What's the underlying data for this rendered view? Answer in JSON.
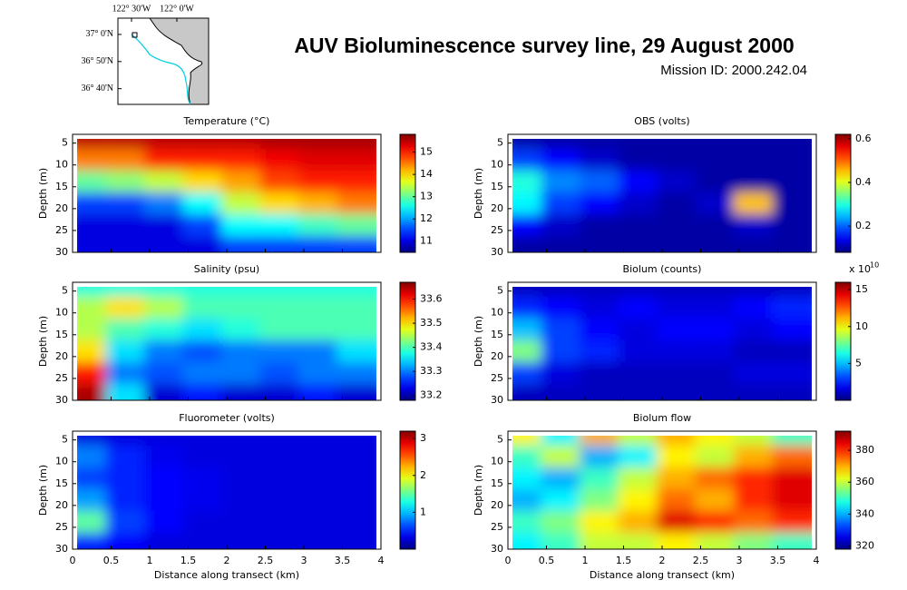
{
  "header": {
    "title": "AUV Bioluminescence survey line, 29 August 2000",
    "subtitle": "Mission ID: 2000.242.04"
  },
  "chart_data": [
    {
      "type": "map",
      "xlim": [
        -122.65,
        -121.65
      ],
      "ylim": [
        36.57,
        37.1
      ],
      "xticks": [
        {
          "value": -122.5,
          "label": "122° 30'W"
        },
        {
          "value": -122,
          "label": "122° 0'W"
        }
      ],
      "yticks": [
        {
          "value": 37,
          "label": "37° 0'N"
        },
        {
          "value": 36.8333,
          "label": "36° 50'N"
        },
        {
          "value": 36.6667,
          "label": "36° 40'N"
        }
      ]
    },
    {
      "type": "heatmap",
      "title": "Temperature (°C)",
      "ylabel": "Depth (m)",
      "xlim": [
        0,
        4
      ],
      "ylim": [
        3,
        30
      ],
      "reverse_y": true,
      "xticks": [
        0,
        0.5,
        1,
        1.5,
        2,
        2.5,
        3,
        3.5,
        4
      ],
      "show_xticklabels": false,
      "yticks": [
        5,
        10,
        15,
        20,
        25,
        30
      ],
      "x": [
        0.25,
        0.75,
        1.25,
        1.75,
        2.25,
        2.75,
        3.25,
        3.75
      ],
      "y": [
        5,
        10,
        15,
        20,
        25,
        30
      ],
      "values": [
        [
          15.5,
          15.5,
          15.5,
          15.5,
          15.5,
          15.6,
          15.6,
          15.6
        ],
        [
          14.5,
          14.5,
          15,
          15,
          15,
          15.2,
          15.3,
          15.3
        ],
        [
          13,
          13.2,
          13.5,
          14,
          14.3,
          14.8,
          15,
          15
        ],
        [
          11.5,
          11.5,
          11.8,
          12.5,
          13.5,
          14,
          14.2,
          14.5
        ],
        [
          11,
          11,
          11,
          11.5,
          12.5,
          12.5,
          12.8,
          13
        ],
        [
          11,
          11,
          11,
          11,
          11.5,
          11.5,
          11.5,
          11.5
        ]
      ],
      "clim": [
        10.5,
        15.8
      ],
      "cticks": [
        11,
        12,
        13,
        14,
        15
      ]
    },
    {
      "type": "heatmap",
      "title": "OBS (volts)",
      "ylabel": "Depth (m)",
      "xlim": [
        0,
        4
      ],
      "ylim": [
        3,
        30
      ],
      "reverse_y": true,
      "xticks": [
        0,
        0.5,
        1,
        1.5,
        2,
        2.5,
        3,
        3.5,
        4
      ],
      "show_xticklabels": false,
      "yticks": [
        5,
        10,
        15,
        20,
        25,
        30
      ],
      "x": [
        0.25,
        0.75,
        1.25,
        1.75,
        2.25,
        2.75,
        3.25,
        3.75
      ],
      "y": [
        5,
        10,
        15,
        20,
        25,
        30
      ],
      "values": [
        [
          0.1,
          0.1,
          0.1,
          0.1,
          0.1,
          0.1,
          0.1,
          0.1
        ],
        [
          0.18,
          0.15,
          0.12,
          0.1,
          0.1,
          0.1,
          0.1,
          0.1
        ],
        [
          0.3,
          0.22,
          0.2,
          0.15,
          0.12,
          0.1,
          0.1,
          0.1
        ],
        [
          0.28,
          0.18,
          0.15,
          0.12,
          0.1,
          0.12,
          0.45,
          0.1
        ],
        [
          0.15,
          0.12,
          0.1,
          0.1,
          0.1,
          0.1,
          0.12,
          0.1
        ],
        [
          0.1,
          0.1,
          0.1,
          0.1,
          0.1,
          0.1,
          0.1,
          0.1
        ]
      ],
      "clim": [
        0.08,
        0.62
      ],
      "cticks": [
        0.2,
        0.4,
        0.6
      ]
    },
    {
      "type": "heatmap",
      "title": "Salinity (psu)",
      "ylabel": "Depth (m)",
      "xlim": [
        0,
        4
      ],
      "ylim": [
        3,
        30
      ],
      "reverse_y": true,
      "xticks": [
        0,
        0.5,
        1,
        1.5,
        2,
        2.5,
        3,
        3.5,
        4
      ],
      "show_xticklabels": false,
      "yticks": [
        5,
        10,
        15,
        20,
        25,
        30
      ],
      "x": [
        0.25,
        0.75,
        1.25,
        1.75,
        2.25,
        2.75,
        3.25,
        3.75
      ],
      "y": [
        5,
        10,
        15,
        20,
        25,
        30
      ],
      "values": [
        [
          33.38,
          33.38,
          33.38,
          33.38,
          33.38,
          33.38,
          33.38,
          33.38
        ],
        [
          33.45,
          33.5,
          33.45,
          33.4,
          33.4,
          33.4,
          33.4,
          33.4
        ],
        [
          33.45,
          33.4,
          33.38,
          33.35,
          33.38,
          33.4,
          33.4,
          33.4
        ],
        [
          33.5,
          33.35,
          33.3,
          33.28,
          33.3,
          33.3,
          33.3,
          33.35
        ],
        [
          33.6,
          33.3,
          33.28,
          33.3,
          33.3,
          33.28,
          33.3,
          33.3
        ],
        [
          33.65,
          33.35,
          33.22,
          33.25,
          33.22,
          33.22,
          33.25,
          33.22
        ]
      ],
      "clim": [
        33.18,
        33.67
      ],
      "cticks": [
        33.2,
        33.3,
        33.4,
        33.5,
        33.6
      ]
    },
    {
      "type": "heatmap",
      "title": "Biolum (counts)",
      "ylabel": "Depth (m)",
      "xlim": [
        0,
        4
      ],
      "ylim": [
        3,
        30
      ],
      "reverse_y": true,
      "xticks": [
        0,
        0.5,
        1,
        1.5,
        2,
        2.5,
        3,
        3.5,
        4
      ],
      "show_xticklabels": false,
      "yticks": [
        5,
        10,
        15,
        20,
        25,
        30
      ],
      "x": [
        0.25,
        0.75,
        1.25,
        1.75,
        2.25,
        2.75,
        3.25,
        3.75
      ],
      "y": [
        5,
        10,
        15,
        20,
        25,
        30
      ],
      "values": [
        [
          1,
          1,
          1,
          1,
          1,
          1,
          1,
          1
        ],
        [
          2.5,
          2,
          1.5,
          2,
          1.5,
          1.5,
          2,
          2.5
        ],
        [
          5,
          3,
          2,
          1.5,
          2,
          2,
          1.5,
          2
        ],
        [
          8,
          3,
          2.5,
          1.5,
          1.5,
          1.5,
          1,
          1
        ],
        [
          3,
          1.5,
          1,
          1,
          1,
          1,
          1.5,
          1.5
        ],
        [
          1,
          1,
          1,
          1,
          1,
          1,
          1,
          1
        ]
      ],
      "clim": [
        0,
        16
      ],
      "cticks": [
        5,
        10,
        15
      ],
      "colorbar_exponent_label": "x 10",
      "colorbar_exponent": 10
    },
    {
      "type": "heatmap",
      "title": "Fluorometer (volts)",
      "ylabel": "Depth (m)",
      "xlabel": "Distance along transect (km)",
      "xlim": [
        0,
        4
      ],
      "ylim": [
        3,
        30
      ],
      "reverse_y": true,
      "xticks": [
        0,
        0.5,
        1,
        1.5,
        2,
        2.5,
        3,
        3.5,
        4
      ],
      "show_xticklabels": true,
      "yticks": [
        5,
        10,
        15,
        20,
        25,
        30
      ],
      "x": [
        0.25,
        0.75,
        1.25,
        1.75,
        2.25,
        2.75,
        3.25,
        3.75
      ],
      "y": [
        5,
        10,
        15,
        20,
        25,
        30
      ],
      "values": [
        [
          0.3,
          0.3,
          0.3,
          0.3,
          0.3,
          0.3,
          0.3,
          0.3
        ],
        [
          0.8,
          0.5,
          0.35,
          0.3,
          0.3,
          0.3,
          0.3,
          0.3
        ],
        [
          0.6,
          0.5,
          0.4,
          0.35,
          0.3,
          0.3,
          0.3,
          0.3
        ],
        [
          0.9,
          0.5,
          0.4,
          0.35,
          0.3,
          0.3,
          0.3,
          0.3
        ],
        [
          1.5,
          0.6,
          0.4,
          0.3,
          0.3,
          0.3,
          0.3,
          0.3
        ],
        [
          0.5,
          0.4,
          0.3,
          0.3,
          0.3,
          0.3,
          0.3,
          0.3
        ]
      ],
      "clim": [
        0,
        3.2
      ],
      "cticks": [
        1,
        2,
        3
      ]
    },
    {
      "type": "heatmap",
      "title": "Biolum flow",
      "ylabel": "Depth (m)",
      "xlabel": "Distance along transect (km)",
      "xlim": [
        0,
        4
      ],
      "ylim": [
        3,
        30
      ],
      "reverse_y": true,
      "xticks": [
        0,
        0.5,
        1,
        1.5,
        2,
        2.5,
        3,
        3.5,
        4
      ],
      "show_xticklabels": true,
      "yticks": [
        5,
        10,
        15,
        20,
        25,
        30
      ],
      "x": [
        0.25,
        0.75,
        1.25,
        1.75,
        2.25,
        2.75,
        3.25,
        3.75
      ],
      "y": [
        5,
        10,
        15,
        20,
        25,
        30
      ],
      "values": [
        [
          365,
          345,
          370,
          360,
          370,
          365,
          360,
          350
        ],
        [
          350,
          360,
          340,
          345,
          365,
          360,
          370,
          375
        ],
        [
          345,
          340,
          350,
          360,
          370,
          375,
          380,
          385
        ],
        [
          340,
          345,
          355,
          365,
          375,
          370,
          380,
          385
        ],
        [
          350,
          355,
          365,
          370,
          385,
          380,
          375,
          380
        ],
        [
          345,
          350,
          360,
          360,
          365,
          360,
          355,
          350
        ]
      ],
      "clim": [
        318,
        392
      ],
      "cticks": [
        320,
        340,
        360,
        380
      ]
    }
  ]
}
